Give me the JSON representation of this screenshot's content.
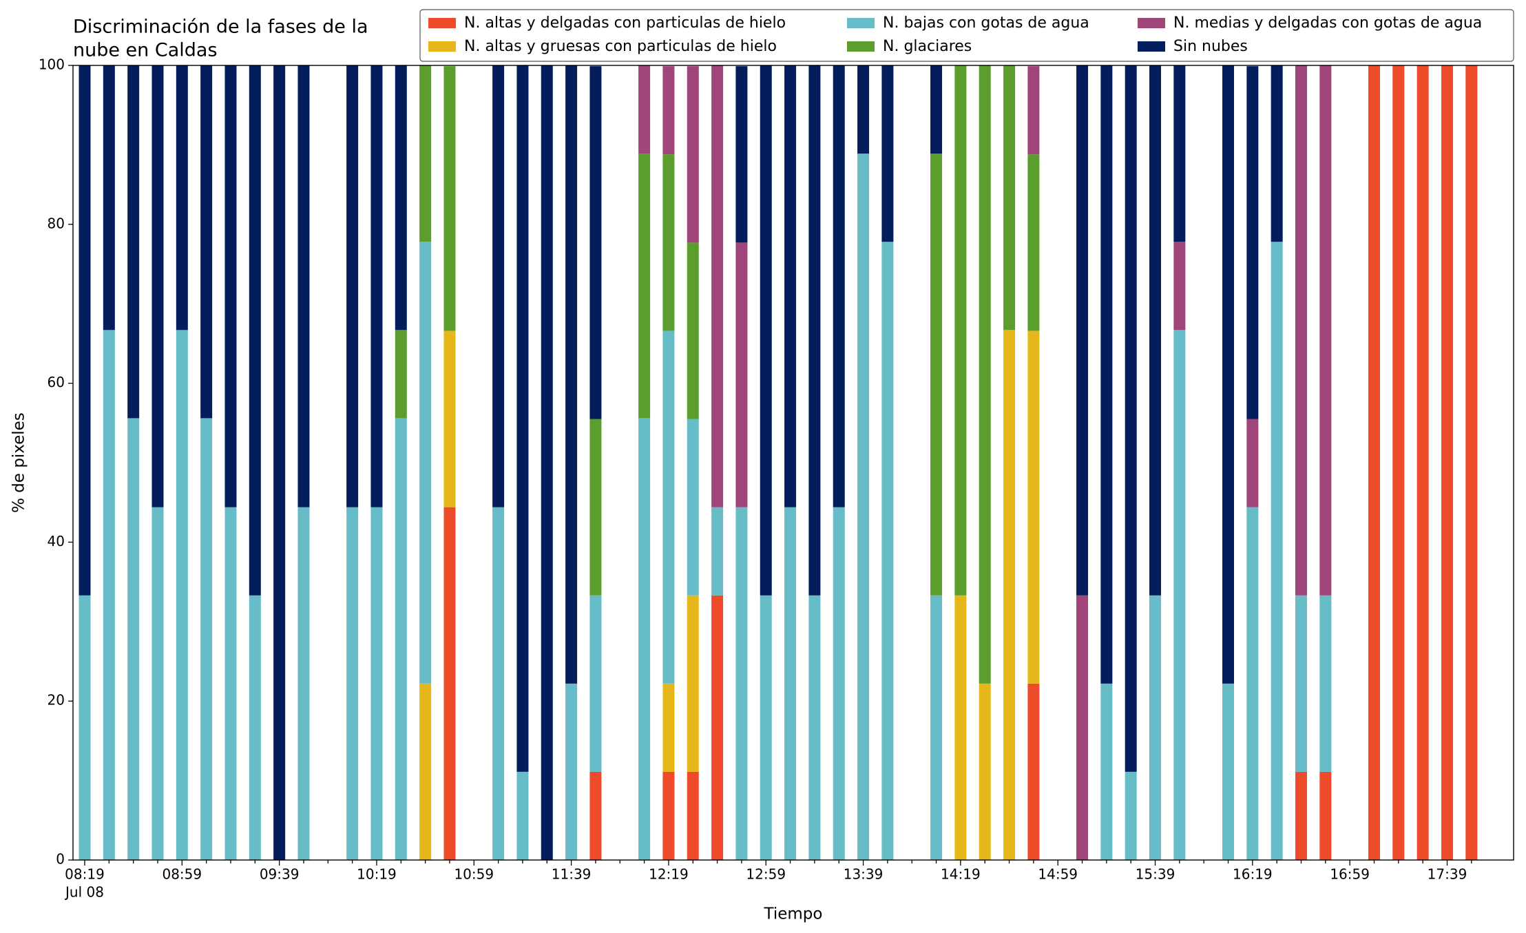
{
  "chart_data": {
    "type": "stacked_bar",
    "title_lines": [
      "Discriminación de la fases de la",
      "nube en Caldas"
    ],
    "x_label": "Tiempo",
    "y_label": "% de pixeles",
    "x_date_label": "Jul 08",
    "categories": [
      "08:19",
      null,
      null,
      null,
      "08:59",
      null,
      null,
      null,
      "09:39",
      null,
      null,
      null,
      "10:19",
      null,
      null,
      null,
      "10:59",
      null,
      null,
      null,
      "11:39",
      null,
      null,
      null,
      "12:19",
      null,
      null,
      null,
      "12:59",
      null,
      null,
      null,
      "13:39",
      null,
      null,
      null,
      "14:19",
      null,
      null,
      null,
      "14:59",
      null,
      null,
      null,
      "15:39",
      null,
      null,
      null,
      "16:19",
      null,
      null,
      null,
      "16:59",
      null,
      null,
      null,
      "17:39",
      null
    ],
    "ylim": [
      0,
      100
    ],
    "yticks": [
      0,
      20,
      40,
      60,
      80,
      100
    ],
    "grid": false,
    "legend_position": "top-right",
    "legend_columns": 3,
    "series": [
      {
        "name": "N. altas y delgadas con particulas de hielo",
        "color": "#ee4b2b",
        "values": [
          0,
          0,
          0,
          0,
          0,
          0,
          0,
          0,
          0,
          0,
          null,
          0,
          0,
          0,
          0,
          44.4,
          null,
          0,
          0,
          0,
          0,
          11.1,
          null,
          0,
          11.1,
          11.1,
          33.3,
          0,
          0,
          0,
          0,
          0,
          0,
          0,
          null,
          0,
          0,
          0,
          0,
          22.2,
          null,
          0,
          0,
          0,
          0,
          0,
          null,
          0,
          0,
          0,
          11.1,
          11.1,
          null,
          100,
          100,
          100,
          100,
          100
        ]
      },
      {
        "name": "N. altas y gruesas con particulas de hielo",
        "color": "#e6b71a",
        "values": [
          0,
          0,
          0,
          0,
          0,
          0,
          0,
          0,
          0,
          0,
          null,
          0,
          0,
          0,
          22.2,
          22.2,
          null,
          0,
          0,
          0,
          0,
          0,
          null,
          0,
          11.1,
          22.2,
          0,
          0,
          0,
          0,
          0,
          0,
          0,
          0,
          null,
          0,
          33.3,
          22.2,
          66.7,
          44.4,
          null,
          0,
          0,
          0,
          0,
          0,
          null,
          0,
          0,
          0,
          0,
          0,
          null,
          0,
          0,
          0,
          0,
          0
        ]
      },
      {
        "name": "N. bajas con gotas de agua",
        "color": "#66bdc8",
        "values": [
          33.3,
          66.7,
          55.6,
          44.4,
          66.7,
          55.6,
          44.4,
          33.3,
          0,
          44.4,
          null,
          44.4,
          44.4,
          55.6,
          55.6,
          0,
          null,
          44.4,
          11.1,
          0,
          22.2,
          22.2,
          null,
          55.6,
          44.4,
          22.2,
          11.1,
          44.4,
          33.3,
          44.4,
          33.3,
          44.4,
          88.9,
          77.8,
          null,
          33.3,
          0,
          0,
          0,
          0,
          null,
          0,
          22.2,
          11.1,
          33.3,
          66.7,
          null,
          22.2,
          44.4,
          77.8,
          22.2,
          22.2,
          null,
          0,
          0,
          0,
          0,
          0
        ]
      },
      {
        "name": "N. glaciares",
        "color": "#5c9e2e",
        "values": [
          0,
          0,
          0,
          0,
          0,
          0,
          0,
          0,
          0,
          0,
          null,
          0,
          0,
          11.1,
          22.2,
          33.3,
          null,
          0,
          0,
          0,
          0,
          22.2,
          null,
          33.3,
          22.2,
          22.2,
          0,
          0,
          0,
          0,
          0,
          0,
          0,
          0,
          null,
          55.6,
          66.7,
          77.8,
          33.3,
          22.2,
          null,
          0,
          0,
          0,
          0,
          0,
          null,
          0,
          0,
          0,
          0,
          0,
          null,
          0,
          0,
          0,
          0,
          0
        ]
      },
      {
        "name": "N. medias y delgadas con gotas de agua",
        "color": "#a0457a",
        "values": [
          0,
          0,
          0,
          0,
          0,
          0,
          0,
          0,
          0,
          0,
          null,
          0,
          0,
          0,
          0,
          0,
          null,
          0,
          0,
          0,
          0,
          0,
          null,
          11.1,
          11.1,
          22.2,
          55.6,
          33.3,
          0,
          0,
          0,
          0,
          0,
          0,
          null,
          0,
          0,
          0,
          0,
          11.1,
          null,
          33.3,
          0,
          0,
          0,
          11.1,
          null,
          0,
          11.1,
          0,
          66.7,
          66.7,
          null,
          0,
          0,
          0,
          0,
          0
        ]
      },
      {
        "name": "Sin nubes",
        "color": "#041e5c",
        "values": [
          66.7,
          33.3,
          44.4,
          55.6,
          33.3,
          44.4,
          55.6,
          66.7,
          100,
          55.6,
          null,
          55.6,
          55.6,
          33.3,
          0,
          0,
          null,
          55.6,
          88.9,
          100,
          77.8,
          44.4,
          null,
          0,
          0,
          0,
          0,
          22.2,
          66.7,
          55.6,
          66.7,
          55.6,
          11.1,
          22.2,
          null,
          11.1,
          0,
          0,
          0,
          0,
          null,
          66.7,
          77.8,
          88.9,
          66.7,
          22.2,
          null,
          77.8,
          44.4,
          22.2,
          0,
          0,
          null,
          0,
          0,
          0,
          0,
          0
        ]
      }
    ]
  }
}
